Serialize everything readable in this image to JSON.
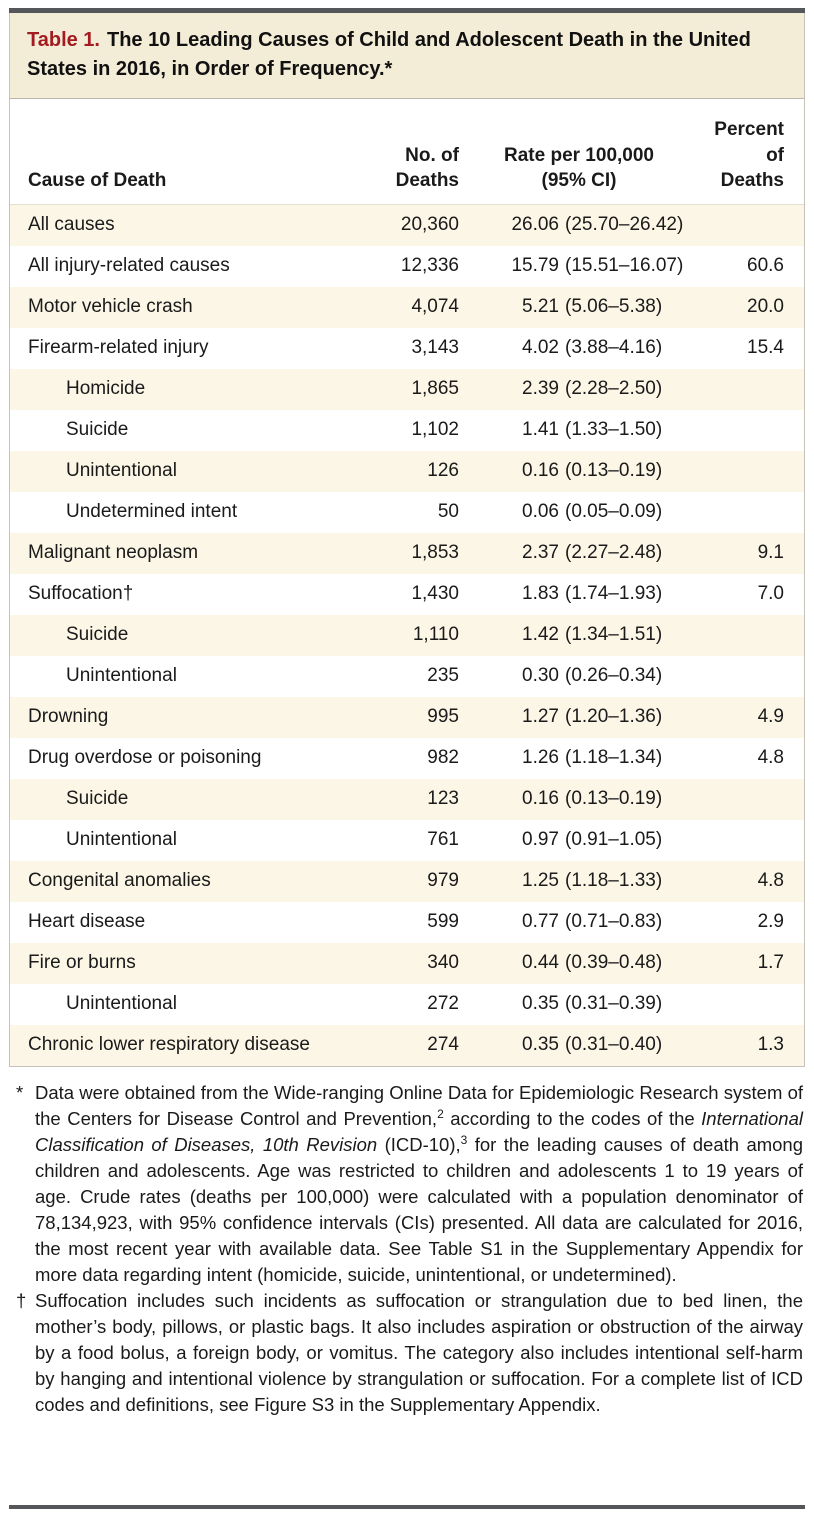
{
  "colors": {
    "accent_red": "#a21c21",
    "title_background": "#f3ecd6",
    "row_stripe": "#fbf6e6",
    "heavy_rule": "#55565a",
    "box_border": "#c6c3b9"
  },
  "table": {
    "title_label": "Table 1.",
    "title_text": "The 10 Leading Causes of Child and Adolescent Death in the United States in 2016, in Order of Frequency.*",
    "columns": {
      "cause": "Cause of Death",
      "deaths": "No. of\nDeaths",
      "rate": "Rate per 100,000\n(95% CI)",
      "percent": "Percent\nof Deaths"
    },
    "rows": [
      {
        "cause": "All causes",
        "indent": false,
        "deaths": "20,360",
        "rate": "26.06",
        "ci": "(25.70–26.42)",
        "percent": ""
      },
      {
        "cause": "All injury-related causes",
        "indent": false,
        "deaths": "12,336",
        "rate": "15.79",
        "ci": "(15.51–16.07)",
        "percent": "60.6"
      },
      {
        "cause": "Motor vehicle crash",
        "indent": false,
        "deaths": "4,074",
        "rate": "5.21",
        "ci": "(5.06–5.38)",
        "percent": "20.0"
      },
      {
        "cause": "Firearm-related injury",
        "indent": false,
        "deaths": "3,143",
        "rate": "4.02",
        "ci": "(3.88–4.16)",
        "percent": "15.4"
      },
      {
        "cause": "Homicide",
        "indent": true,
        "deaths": "1,865",
        "rate": "2.39",
        "ci": "(2.28–2.50)",
        "percent": ""
      },
      {
        "cause": "Suicide",
        "indent": true,
        "deaths": "1,102",
        "rate": "1.41",
        "ci": "(1.33–1.50)",
        "percent": ""
      },
      {
        "cause": "Unintentional",
        "indent": true,
        "deaths": "126",
        "rate": "0.16",
        "ci": "(0.13–0.19)",
        "percent": ""
      },
      {
        "cause": "Undetermined intent",
        "indent": true,
        "deaths": "50",
        "rate": "0.06",
        "ci": "(0.05–0.09)",
        "percent": ""
      },
      {
        "cause": "Malignant neoplasm",
        "indent": false,
        "deaths": "1,853",
        "rate": "2.37",
        "ci": "(2.27–2.48)",
        "percent": "9.1"
      },
      {
        "cause": "Suffocation†",
        "indent": false,
        "deaths": "1,430",
        "rate": "1.83",
        "ci": "(1.74–1.93)",
        "percent": "7.0"
      },
      {
        "cause": "Suicide",
        "indent": true,
        "deaths": "1,110",
        "rate": "1.42",
        "ci": "(1.34–1.51)",
        "percent": ""
      },
      {
        "cause": "Unintentional",
        "indent": true,
        "deaths": "235",
        "rate": "0.30",
        "ci": "(0.26–0.34)",
        "percent": ""
      },
      {
        "cause": "Drowning",
        "indent": false,
        "deaths": "995",
        "rate": "1.27",
        "ci": "(1.20–1.36)",
        "percent": "4.9"
      },
      {
        "cause": "Drug overdose or poisoning",
        "indent": false,
        "deaths": "982",
        "rate": "1.26",
        "ci": "(1.18–1.34)",
        "percent": "4.8"
      },
      {
        "cause": "Suicide",
        "indent": true,
        "deaths": "123",
        "rate": "0.16",
        "ci": "(0.13–0.19)",
        "percent": ""
      },
      {
        "cause": "Unintentional",
        "indent": true,
        "deaths": "761",
        "rate": "0.97",
        "ci": "(0.91–1.05)",
        "percent": ""
      },
      {
        "cause": "Congenital anomalies",
        "indent": false,
        "deaths": "979",
        "rate": "1.25",
        "ci": "(1.18–1.33)",
        "percent": "4.8"
      },
      {
        "cause": "Heart disease",
        "indent": false,
        "deaths": "599",
        "rate": "0.77",
        "ci": "(0.71–0.83)",
        "percent": "2.9"
      },
      {
        "cause": "Fire or burns",
        "indent": false,
        "deaths": "340",
        "rate": "0.44",
        "ci": "(0.39–0.48)",
        "percent": "1.7"
      },
      {
        "cause": "Unintentional",
        "indent": true,
        "deaths": "272",
        "rate": "0.35",
        "ci": "(0.31–0.39)",
        "percent": ""
      },
      {
        "cause": "Chronic lower respiratory disease",
        "indent": false,
        "deaths": "274",
        "rate": "0.35",
        "ci": "(0.31–0.40)",
        "percent": "1.3"
      }
    ]
  },
  "footnotes": [
    {
      "marker": "*",
      "segments": [
        {
          "text": "Data were obtained from the Wide-ranging Online Data for Epidemiologic Research system of the Centers for Disease Control and Prevention,"
        },
        {
          "text": "2",
          "sup": true
        },
        {
          "text": " according to the codes of the "
        },
        {
          "text": "International Classification of Diseases, 10th Revision",
          "italic": true
        },
        {
          "text": " (ICD-10),"
        },
        {
          "text": "3",
          "sup": true
        },
        {
          "text": " for the leading causes of death among children and adolescents. Age was restricted to children and adolescents 1 to 19 years of age. Crude rates (deaths per 100,000) were calculated with a population denominator of 78,134,923, with 95% confidence intervals (CIs) presented. All data are calculated for 2016, the most recent year with available data. See Table S1 in the Supplementary Appendix for more data regarding intent (homicide, suicide, unintentional, or undetermined)."
        }
      ]
    },
    {
      "marker": "†",
      "segments": [
        {
          "text": "Suffocation includes such incidents as suffocation or strangulation due to bed linen, the mother’s body, pillows, or plastic bags. It also includes aspiration or obstruction of the airway by a food bolus, a foreign body, or vomitus. The category also includes intentional self-harm by hanging and intentional violence by strangulation or suffocation. For a complete list of ICD codes and definitions, see Figure S3 in the Supplementary Appendix."
        }
      ]
    }
  ]
}
